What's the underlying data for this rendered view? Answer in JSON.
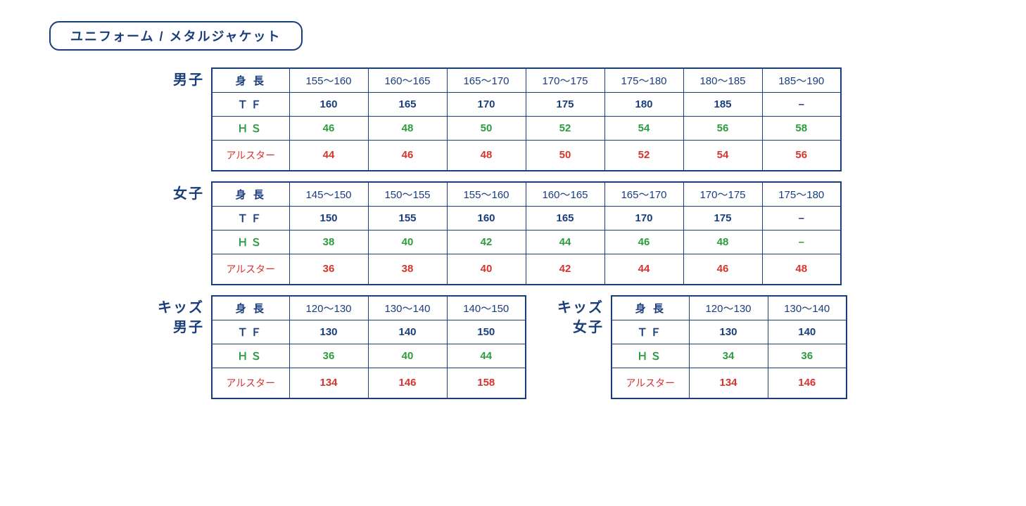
{
  "title": "ユニフォーム / メタルジャケット",
  "colors": {
    "border": "#1a3d7c",
    "navy": "#1a3d7c",
    "green": "#2b9c3f",
    "red": "#d4342e",
    "background": "#ffffff"
  },
  "row_labels": {
    "height": "身 長",
    "tf": "ＴＦ",
    "hs": "ＨＳ",
    "allstar": "アルスター"
  },
  "tables": {
    "mens": {
      "side_label": "男子",
      "height": [
        "155～160",
        "160～165",
        "165～170",
        "170～175",
        "175～180",
        "180～185",
        "185～190"
      ],
      "tf": [
        "160",
        "165",
        "170",
        "175",
        "180",
        "185",
        "–"
      ],
      "hs": [
        "46",
        "48",
        "50",
        "52",
        "54",
        "56",
        "58"
      ],
      "allstar": [
        "44",
        "46",
        "48",
        "50",
        "52",
        "54",
        "56"
      ]
    },
    "womens": {
      "side_label": "女子",
      "height": [
        "145～150",
        "150～155",
        "155～160",
        "160～165",
        "165～170",
        "170～175",
        "175～180"
      ],
      "tf": [
        "150",
        "155",
        "160",
        "165",
        "170",
        "175",
        "–"
      ],
      "hs": [
        "38",
        "40",
        "42",
        "44",
        "46",
        "48",
        "–"
      ],
      "allstar": [
        "36",
        "38",
        "40",
        "42",
        "44",
        "46",
        "48"
      ]
    },
    "kids_boys": {
      "side_label_1": "キッズ",
      "side_label_2": "男子",
      "height": [
        "120～130",
        "130～140",
        "140～150"
      ],
      "tf": [
        "130",
        "140",
        "150"
      ],
      "hs": [
        "36",
        "40",
        "44"
      ],
      "allstar": [
        "134",
        "146",
        "158"
      ]
    },
    "kids_girls": {
      "side_label_1": "キッズ",
      "side_label_2": "女子",
      "height": [
        "120～130",
        "130～140"
      ],
      "tf": [
        "130",
        "140"
      ],
      "hs": [
        "34",
        "36"
      ],
      "allstar": [
        "134",
        "146"
      ]
    }
  }
}
